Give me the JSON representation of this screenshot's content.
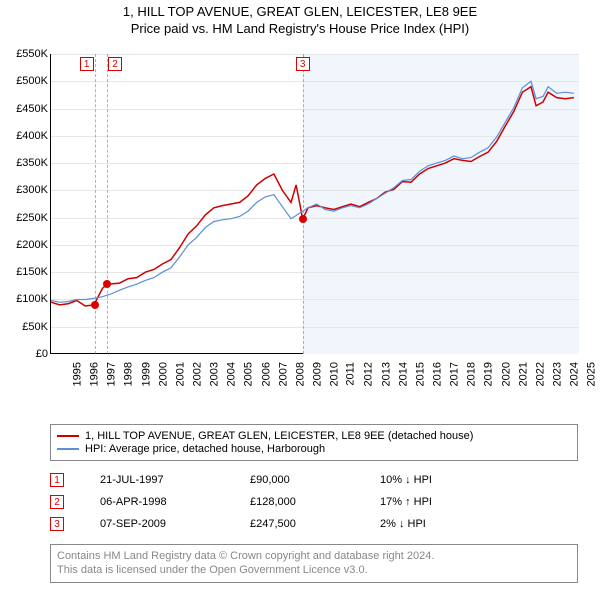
{
  "title": "1, HILL TOP AVENUE, GREAT GLEN, LEICESTER, LE8 9EE",
  "subtitle": "Price paid vs. HM Land Registry's House Price Index (HPI)",
  "chart": {
    "type": "line",
    "xlim": [
      1995,
      2025.8
    ],
    "ylim": [
      0,
      550000
    ],
    "ytick_step": 50000,
    "yticks": [
      "£0",
      "£50K",
      "£100K",
      "£150K",
      "£200K",
      "£250K",
      "£300K",
      "£350K",
      "£400K",
      "£450K",
      "£500K",
      "£550K"
    ],
    "xticks": [
      1995,
      1996,
      1997,
      1998,
      1999,
      2000,
      2001,
      2002,
      2003,
      2004,
      2005,
      2006,
      2007,
      2008,
      2009,
      2010,
      2011,
      2012,
      2013,
      2014,
      2015,
      2016,
      2017,
      2018,
      2019,
      2020,
      2021,
      2022,
      2023,
      2024,
      2025
    ],
    "grid_color": "#e6e6e6",
    "background_color": "#ffffff",
    "shaded_from_x": 2009.68,
    "shaded_color": "#f0f6fc",
    "series": [
      {
        "name": "1, HILL TOP AVENUE, GREAT GLEN, LEICESTER, LE8 9EE (detached house)",
        "color": "#d00000",
        "width": 1.5,
        "data": [
          [
            1995,
            95000
          ],
          [
            1995.5,
            90000
          ],
          [
            1996,
            92000
          ],
          [
            1996.5,
            98000
          ],
          [
            1997,
            88000
          ],
          [
            1997.5,
            90000
          ],
          [
            1998,
            120000
          ],
          [
            1998.27,
            128000
          ],
          [
            1999,
            130000
          ],
          [
            1999.5,
            138000
          ],
          [
            2000,
            140000
          ],
          [
            2000.5,
            150000
          ],
          [
            2001,
            155000
          ],
          [
            2001.5,
            165000
          ],
          [
            2002,
            173000
          ],
          [
            2002.5,
            195000
          ],
          [
            2003,
            220000
          ],
          [
            2003.5,
            235000
          ],
          [
            2004,
            255000
          ],
          [
            2004.5,
            268000
          ],
          [
            2005,
            272000
          ],
          [
            2005.5,
            275000
          ],
          [
            2006,
            278000
          ],
          [
            2006.5,
            290000
          ],
          [
            2007,
            310000
          ],
          [
            2007.5,
            322000
          ],
          [
            2008,
            330000
          ],
          [
            2008.5,
            300000
          ],
          [
            2009,
            278000
          ],
          [
            2009.3,
            310000
          ],
          [
            2009.68,
            247500
          ],
          [
            2010,
            268000
          ],
          [
            2010.5,
            272000
          ],
          [
            2011,
            268000
          ],
          [
            2011.5,
            265000
          ],
          [
            2012,
            270000
          ],
          [
            2012.5,
            275000
          ],
          [
            2013,
            270000
          ],
          [
            2013.5,
            278000
          ],
          [
            2014,
            285000
          ],
          [
            2014.5,
            297000
          ],
          [
            2015,
            302000
          ],
          [
            2015.5,
            316000
          ],
          [
            2016,
            315000
          ],
          [
            2016.5,
            330000
          ],
          [
            2017,
            340000
          ],
          [
            2017.5,
            345000
          ],
          [
            2018,
            350000
          ],
          [
            2018.5,
            358000
          ],
          [
            2019,
            355000
          ],
          [
            2019.5,
            353000
          ],
          [
            2020,
            362000
          ],
          [
            2020.5,
            370000
          ],
          [
            2021,
            390000
          ],
          [
            2021.5,
            418000
          ],
          [
            2022,
            445000
          ],
          [
            2022.5,
            480000
          ],
          [
            2023,
            490000
          ],
          [
            2023.3,
            455000
          ],
          [
            2023.7,
            462000
          ],
          [
            2024,
            480000
          ],
          [
            2024.5,
            470000
          ],
          [
            2025,
            468000
          ],
          [
            2025.5,
            470000
          ]
        ]
      },
      {
        "name": "HPI: Average price, detached house, Harborough",
        "color": "#5b8fd6",
        "width": 1.2,
        "data": [
          [
            1995,
            98000
          ],
          [
            1995.5,
            95000
          ],
          [
            1996,
            96000
          ],
          [
            1996.5,
            100000
          ],
          [
            1997,
            100000
          ],
          [
            1997.5,
            102000
          ],
          [
            1998,
            105000
          ],
          [
            1998.5,
            110000
          ],
          [
            1999,
            117000
          ],
          [
            1999.5,
            123000
          ],
          [
            2000,
            128000
          ],
          [
            2000.5,
            135000
          ],
          [
            2001,
            140000
          ],
          [
            2001.5,
            150000
          ],
          [
            2002,
            158000
          ],
          [
            2002.5,
            178000
          ],
          [
            2003,
            200000
          ],
          [
            2003.5,
            214000
          ],
          [
            2004,
            232000
          ],
          [
            2004.5,
            243000
          ],
          [
            2005,
            246000
          ],
          [
            2005.5,
            248000
          ],
          [
            2006,
            252000
          ],
          [
            2006.5,
            262000
          ],
          [
            2007,
            278000
          ],
          [
            2007.5,
            288000
          ],
          [
            2008,
            292000
          ],
          [
            2008.5,
            270000
          ],
          [
            2009,
            248000
          ],
          [
            2009.5,
            258000
          ],
          [
            2010,
            268000
          ],
          [
            2010.5,
            275000
          ],
          [
            2011,
            265000
          ],
          [
            2011.5,
            262000
          ],
          [
            2012,
            268000
          ],
          [
            2012.5,
            272000
          ],
          [
            2013,
            268000
          ],
          [
            2013.5,
            275000
          ],
          [
            2014,
            285000
          ],
          [
            2014.5,
            295000
          ],
          [
            2015,
            305000
          ],
          [
            2015.5,
            318000
          ],
          [
            2016,
            320000
          ],
          [
            2016.5,
            335000
          ],
          [
            2017,
            345000
          ],
          [
            2017.5,
            350000
          ],
          [
            2018,
            355000
          ],
          [
            2018.5,
            363000
          ],
          [
            2019,
            358000
          ],
          [
            2019.5,
            360000
          ],
          [
            2020,
            370000
          ],
          [
            2020.5,
            378000
          ],
          [
            2021,
            398000
          ],
          [
            2021.5,
            425000
          ],
          [
            2022,
            452000
          ],
          [
            2022.5,
            488000
          ],
          [
            2023,
            500000
          ],
          [
            2023.3,
            468000
          ],
          [
            2023.7,
            472000
          ],
          [
            2024,
            490000
          ],
          [
            2024.5,
            478000
          ],
          [
            2025,
            480000
          ],
          [
            2025.5,
            478000
          ]
        ]
      }
    ],
    "markers": [
      {
        "n": "1",
        "x": 1997.55,
        "y": 90000,
        "label_offset": -8
      },
      {
        "n": "2",
        "x": 1998.27,
        "y": 128000,
        "label_offset": 8
      },
      {
        "n": "3",
        "x": 2009.68,
        "y": 247500,
        "label_offset": 0
      }
    ]
  },
  "legend": [
    {
      "color": "#d00000",
      "label": "1, HILL TOP AVENUE, GREAT GLEN, LEICESTER, LE8 9EE (detached house)"
    },
    {
      "color": "#5b8fd6",
      "label": "HPI: Average price, detached house, Harborough"
    }
  ],
  "transactions": [
    {
      "n": "1",
      "date": "21-JUL-1997",
      "price": "£90,000",
      "diff": "10% ↓ HPI"
    },
    {
      "n": "2",
      "date": "06-APR-1998",
      "price": "£128,000",
      "diff": "17% ↑ HPI"
    },
    {
      "n": "3",
      "date": "07-SEP-2009",
      "price": "£247,500",
      "diff": "2% ↓ HPI"
    }
  ],
  "footer_line1": "Contains HM Land Registry data © Crown copyright and database right 2024.",
  "footer_line2": "This data is licensed under the Open Government Licence v3.0."
}
